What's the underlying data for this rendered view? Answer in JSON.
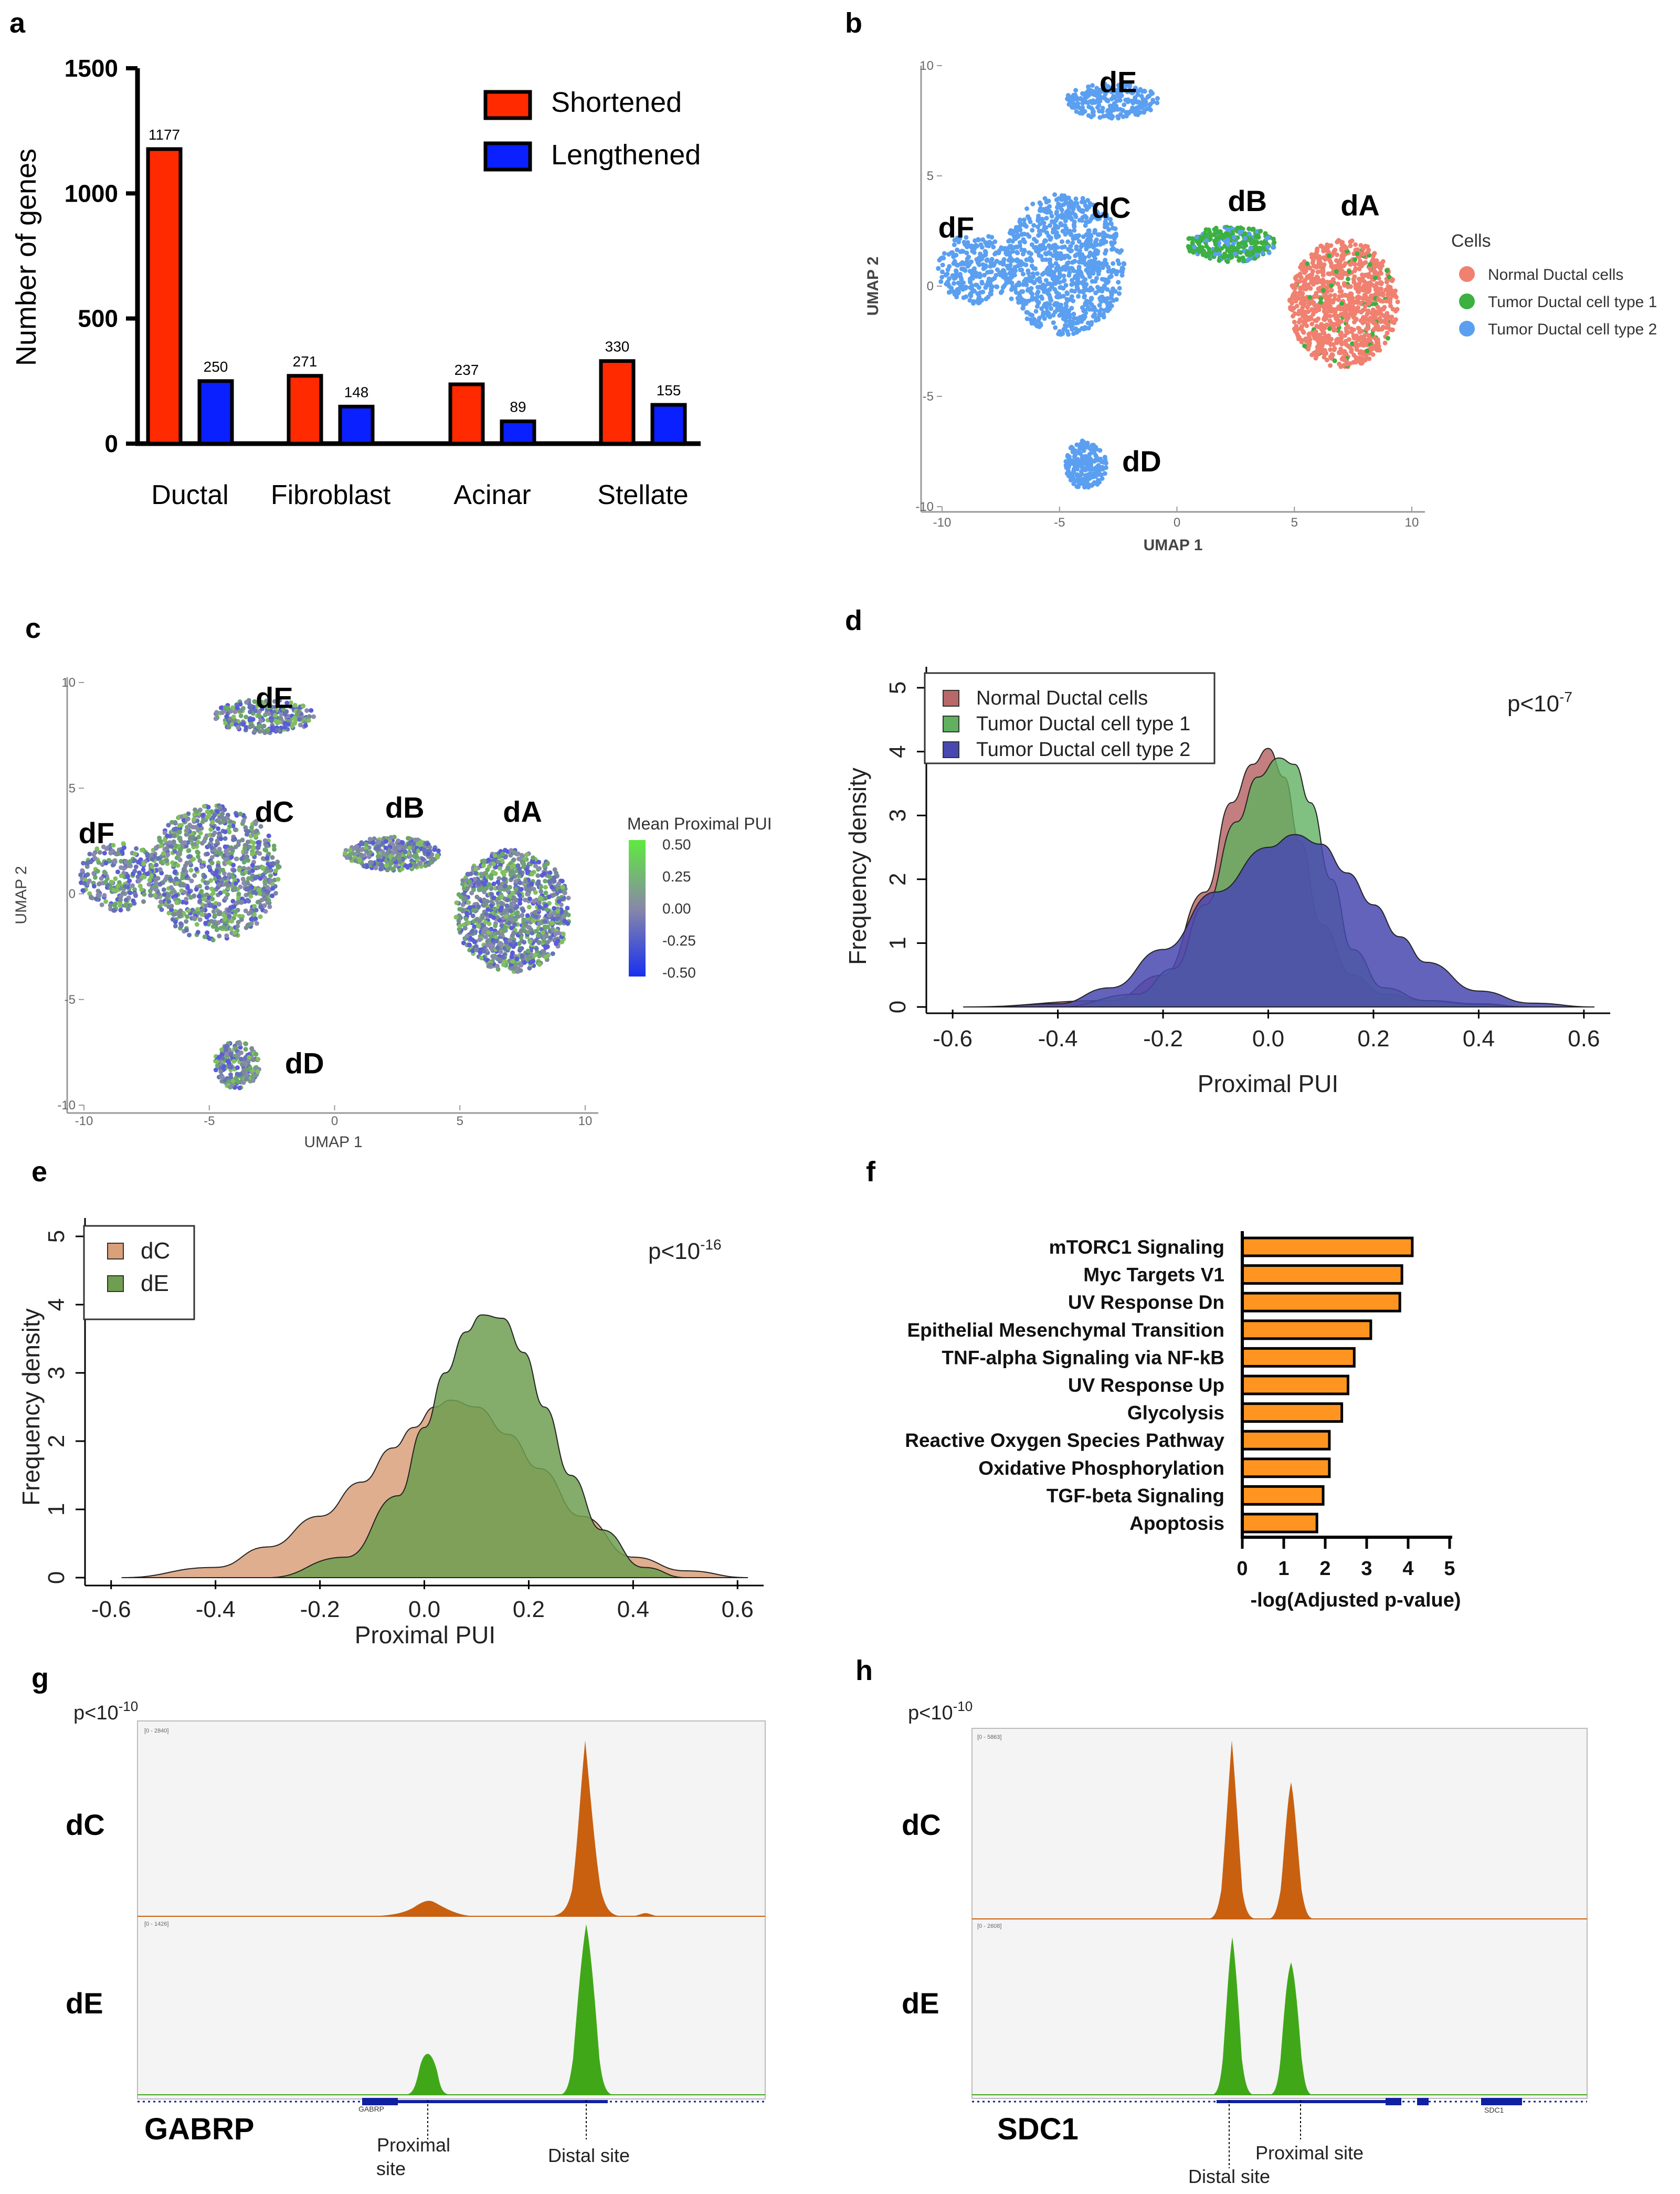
{
  "panels": {
    "a": "a",
    "b": "b",
    "c": "c",
    "d": "d",
    "e": "e",
    "f": "f",
    "g": "g",
    "h": "h"
  },
  "chart_data": [
    {
      "panel": "a",
      "type": "bar",
      "ylabel": "Number of genes",
      "ylim": [
        0,
        1500
      ],
      "yticks": [
        0,
        500,
        1000,
        1500
      ],
      "categories": [
        "Ductal",
        "Fibroblast",
        "Acinar",
        "Stellate"
      ],
      "series": [
        {
          "name": "Shortened",
          "color": "#ff2a00",
          "values": [
            1177,
            271,
            237,
            330
          ]
        },
        {
          "name": "Lengthened",
          "color": "#0a20ff",
          "values": [
            250,
            148,
            89,
            155
          ]
        }
      ],
      "legend": "top-right"
    },
    {
      "panel": "b",
      "type": "scatter",
      "xlabel": "UMAP 1",
      "ylabel": "UMAP 2",
      "xlim": [
        -10,
        10
      ],
      "ylim": [
        -10,
        10
      ],
      "xticks": [
        -10,
        -5,
        0,
        5,
        10
      ],
      "yticks": [
        -10,
        -5,
        0,
        5,
        10
      ],
      "legend_title": "Cells",
      "groups": [
        {
          "name": "Normal Ductal cells",
          "color": "#f08070"
        },
        {
          "name": "Tumor Ductal cell type 1",
          "color": "#3cb040"
        },
        {
          "name": "Tumor Ductal cell type 2",
          "color": "#5b9ff0"
        }
      ],
      "cluster_labels": [
        {
          "label": "dE",
          "x": -2.5,
          "y": 8.8
        },
        {
          "label": "dB",
          "x": 3,
          "y": 3.4
        },
        {
          "label": "dA",
          "x": 7.8,
          "y": 3.2
        },
        {
          "label": "dC",
          "x": -2.8,
          "y": 3.1
        },
        {
          "label": "dF",
          "x": -9.4,
          "y": 2.2
        },
        {
          "label": "dD",
          "x": -1.5,
          "y": -8.4
        }
      ]
    },
    {
      "panel": "c",
      "type": "scatter",
      "xlabel": "UMAP 1",
      "ylabel": "UMAP 2",
      "xlim": [
        -10,
        10
      ],
      "ylim": [
        -10,
        10
      ],
      "xticks": [
        -10,
        -5,
        0,
        5,
        10
      ],
      "yticks": [
        -10,
        -5,
        0,
        5,
        10
      ],
      "colorbar_title": "Mean Proximal PUI",
      "colorbar_ticks": [
        "0.50",
        "0.25",
        "0.00",
        "-0.25",
        "-0.50"
      ],
      "cluster_labels": [
        {
          "label": "dE",
          "x": -2.4,
          "y": 8.8
        },
        {
          "label": "dC",
          "x": -2.4,
          "y": 3.4
        },
        {
          "label": "dB",
          "x": 2.8,
          "y": 3.6
        },
        {
          "label": "dA",
          "x": 7.5,
          "y": 3.4
        },
        {
          "label": "dF",
          "x": -9.5,
          "y": 2.4
        },
        {
          "label": "dD",
          "x": -1.2,
          "y": -8.5
        }
      ]
    },
    {
      "panel": "d",
      "type": "area",
      "xlabel": "Proximal PUI",
      "ylabel": "Frequency density",
      "xlim": [
        -0.65,
        0.65
      ],
      "ylim": [
        0,
        5
      ],
      "xticks": [
        -0.6,
        -0.4,
        -0.2,
        0.0,
        0.2,
        0.4,
        0.6
      ],
      "yticks": [
        0,
        1,
        2,
        3,
        4,
        5
      ],
      "annotation": "p<10",
      "annotation_exp": "-7",
      "legend": "top-left",
      "series": [
        {
          "name": "Normal Ductal cells",
          "color": "#b86868",
          "x": [
            -0.58,
            -0.3,
            -0.2,
            -0.12,
            -0.07,
            -0.03,
            0.0,
            0.03,
            0.06,
            0.1,
            0.16,
            0.22,
            0.3,
            0.4,
            0.5
          ],
          "y": [
            0,
            0.1,
            0.5,
            1.8,
            3.2,
            3.8,
            4.05,
            3.6,
            2.6,
            1.3,
            0.5,
            0.2,
            0.1,
            0.05,
            0
          ]
        },
        {
          "name": "Tumor Ductal cell type 1",
          "color": "#60b060",
          "x": [
            -0.4,
            -0.25,
            -0.18,
            -0.12,
            -0.06,
            -0.02,
            0.02,
            0.05,
            0.08,
            0.12,
            0.16,
            0.22,
            0.3,
            0.4,
            0.5
          ],
          "y": [
            0,
            0.2,
            0.6,
            1.6,
            2.9,
            3.6,
            3.9,
            3.8,
            3.2,
            2.0,
            0.9,
            0.3,
            0.1,
            0.04,
            0
          ]
        },
        {
          "name": "Tumor Ductal cell type 2",
          "color": "#4848b0",
          "x": [
            -0.55,
            -0.4,
            -0.3,
            -0.2,
            -0.1,
            0.0,
            0.05,
            0.1,
            0.15,
            0.2,
            0.25,
            0.3,
            0.4,
            0.5,
            0.62
          ],
          "y": [
            0,
            0.05,
            0.3,
            0.9,
            1.8,
            2.5,
            2.7,
            2.55,
            2.1,
            1.6,
            1.1,
            0.7,
            0.25,
            0.06,
            0
          ]
        }
      ]
    },
    {
      "panel": "e",
      "type": "area",
      "xlabel": "Proximal PUI",
      "ylabel": "Frequency density",
      "xlim": [
        -0.65,
        0.65
      ],
      "ylim": [
        0,
        5
      ],
      "xticks": [
        -0.6,
        -0.4,
        -0.2,
        0.0,
        0.2,
        0.4,
        0.6
      ],
      "yticks": [
        0,
        1,
        2,
        3,
        4,
        5
      ],
      "annotation": "p<10",
      "annotation_exp": "-16",
      "legend": "top-left",
      "series": [
        {
          "name": "dC",
          "color": "#d9a07a",
          "x": [
            -0.58,
            -0.4,
            -0.3,
            -0.2,
            -0.12,
            -0.06,
            -0.02,
            0.02,
            0.05,
            0.1,
            0.16,
            0.22,
            0.3,
            0.4,
            0.5,
            0.62
          ],
          "y": [
            0,
            0.15,
            0.45,
            0.9,
            1.4,
            1.9,
            2.2,
            2.5,
            2.6,
            2.5,
            2.1,
            1.6,
            0.9,
            0.3,
            0.1,
            0
          ]
        },
        {
          "name": "dE",
          "color": "#6f9e50",
          "x": [
            -0.3,
            -0.15,
            -0.05,
            0.0,
            0.04,
            0.08,
            0.11,
            0.15,
            0.19,
            0.23,
            0.28,
            0.34,
            0.42,
            0.5
          ],
          "y": [
            0,
            0.3,
            1.2,
            2.2,
            3.0,
            3.6,
            3.85,
            3.8,
            3.3,
            2.5,
            1.5,
            0.7,
            0.15,
            0
          ]
        }
      ]
    },
    {
      "panel": "f",
      "type": "bar",
      "orientation": "horizontal",
      "xlabel": "-log(Adjusted p-value)",
      "xlim": [
        0,
        5
      ],
      "xticks": [
        0,
        1,
        2,
        3,
        4,
        5
      ],
      "color": "#ff9520",
      "categories": [
        "mTORC1 Signaling",
        "Myc Targets V1",
        "UV Response Dn",
        "Epithelial Mesenchymal Transition",
        "TNF-alpha Signaling via NF-kB",
        "UV Response Up",
        "Glycolysis",
        "Reactive Oxygen Species Pathway",
        "Oxidative Phosphorylation",
        "TGF-beta Signaling",
        "Apoptosis"
      ],
      "values": [
        4.1,
        3.85,
        3.8,
        3.1,
        2.7,
        2.55,
        2.4,
        2.1,
        2.1,
        1.95,
        1.8
      ]
    }
  ],
  "tracks": {
    "g": {
      "pvalue": "p<10",
      "pvalue_exp": "-10",
      "gene": "GABRP",
      "gene_small": "GABRP",
      "row1": "dC",
      "row2": "dE",
      "site1": "Proximal",
      "site1b": "site",
      "site2": "Distal site",
      "scale1": "[0 - 2840]",
      "scale2": "[0 - 1426]"
    },
    "h": {
      "pvalue": "p<10",
      "pvalue_exp": "-10",
      "gene": "SDC1",
      "gene_small": "SDC1",
      "row1": "dC",
      "row2": "dE",
      "site1": "Proximal site",
      "site2": "Distal site",
      "scale1": "[0 - 5863]",
      "scale2": "[0 - 2608]"
    }
  },
  "colors": {
    "dC_track": "#c86010",
    "dE_track": "#40a818",
    "gene_line": "#1020a0"
  }
}
